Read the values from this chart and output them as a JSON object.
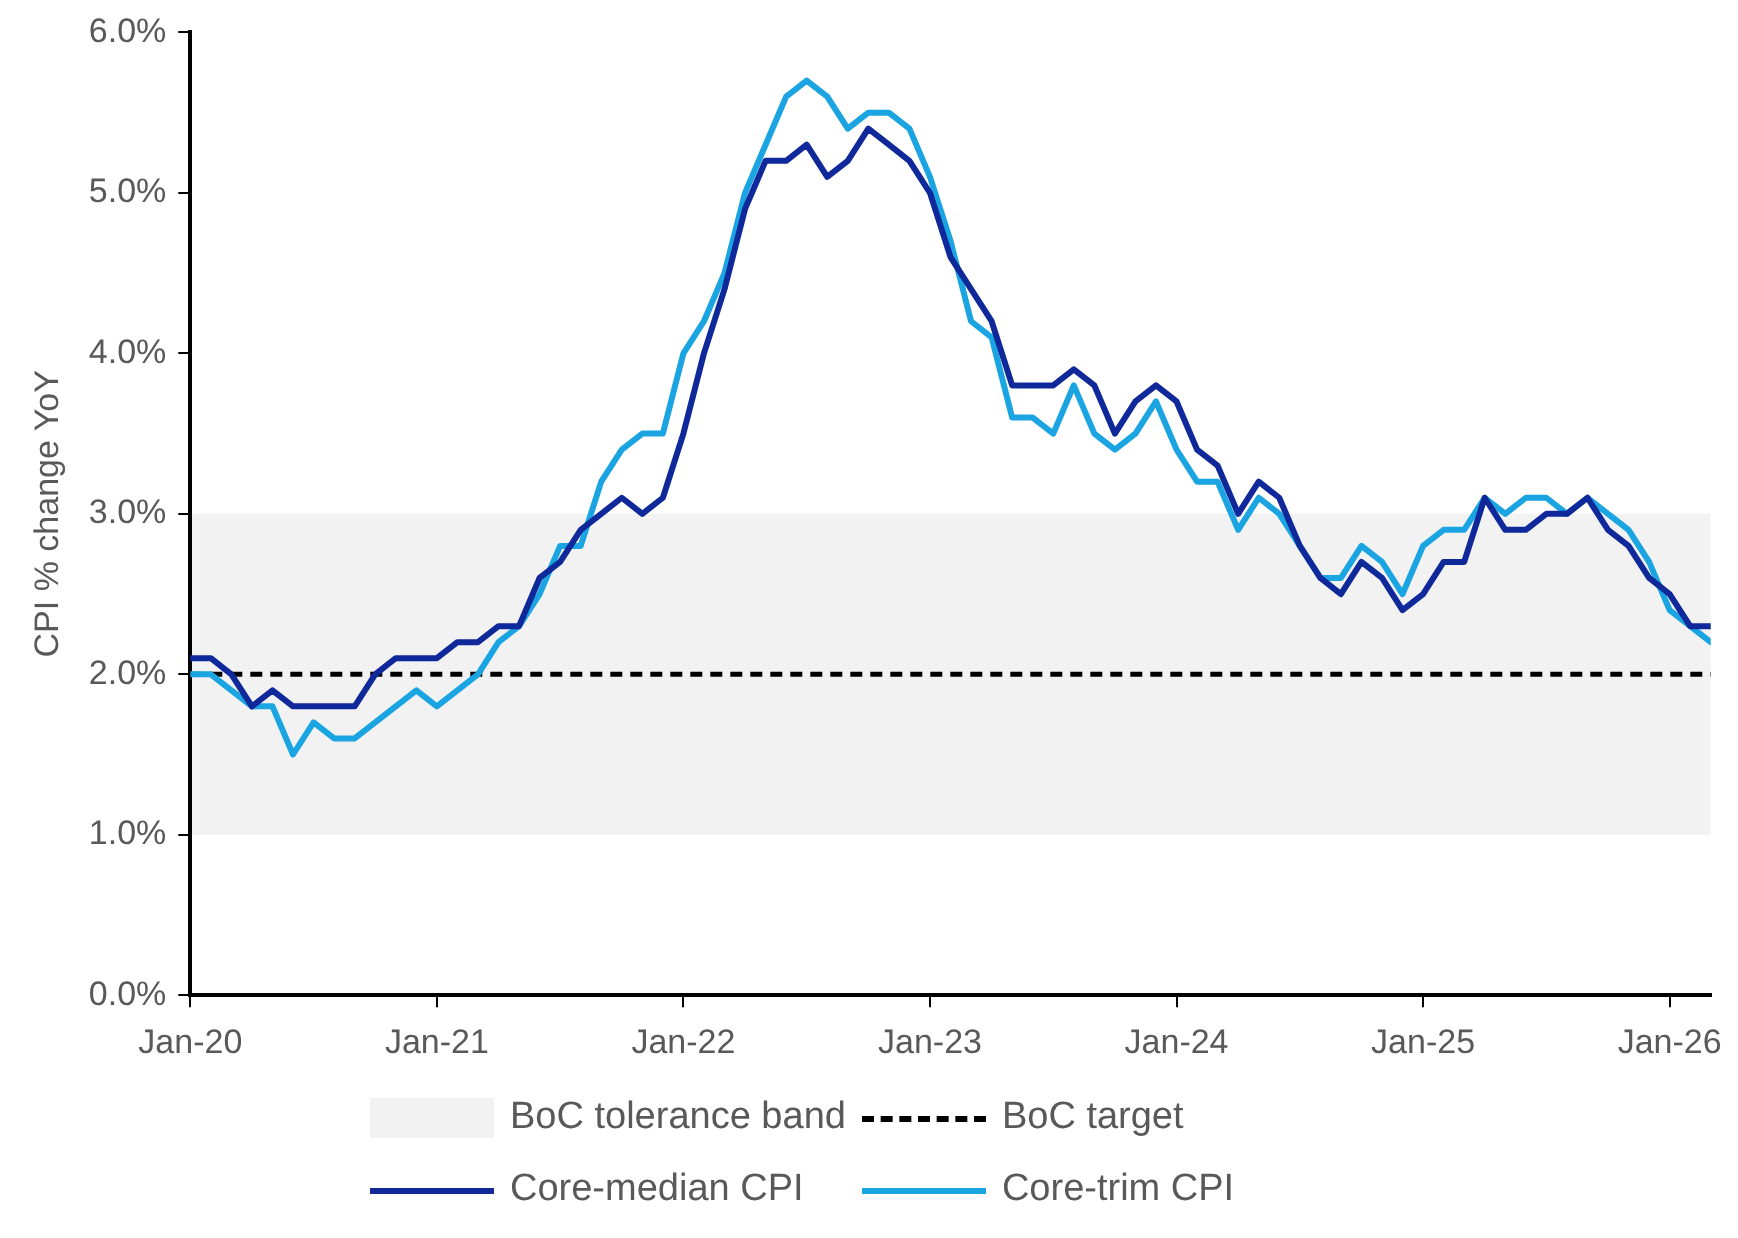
{
  "chart_data": {
    "type": "line",
    "ylabel": "CPI % change YoY",
    "x": [
      "2020-01",
      "2020-02",
      "2020-03",
      "2020-04",
      "2020-05",
      "2020-06",
      "2020-07",
      "2020-08",
      "2020-09",
      "2020-10",
      "2020-11",
      "2020-12",
      "2021-01",
      "2021-02",
      "2021-03",
      "2021-04",
      "2021-05",
      "2021-06",
      "2021-07",
      "2021-08",
      "2021-09",
      "2021-10",
      "2021-11",
      "2021-12",
      "2022-01",
      "2022-02",
      "2022-03",
      "2022-04",
      "2022-05",
      "2022-06",
      "2022-07",
      "2022-08",
      "2022-09",
      "2022-10",
      "2022-11",
      "2022-12",
      "2023-01",
      "2023-02",
      "2023-03",
      "2023-04",
      "2023-05",
      "2023-06",
      "2023-07",
      "2023-08",
      "2023-09",
      "2023-10",
      "2023-11",
      "2023-12",
      "2024-01",
      "2024-02",
      "2024-03",
      "2024-04",
      "2024-05",
      "2024-06",
      "2024-07",
      "2024-08",
      "2024-09",
      "2024-10",
      "2024-11",
      "2024-12",
      "2025-01",
      "2025-02",
      "2025-03",
      "2025-04",
      "2025-05",
      "2025-06",
      "2025-07",
      "2025-08",
      "2025-09",
      "2025-10",
      "2025-11",
      "2025-12",
      "2026-01",
      "2026-02",
      "2026-03"
    ],
    "series": [
      {
        "name": "Core-median CPI",
        "color": "#10299a",
        "values": [
          2.1,
          2.1,
          2.0,
          1.8,
          1.9,
          1.8,
          1.8,
          1.8,
          1.8,
          2.0,
          2.1,
          2.1,
          2.1,
          2.2,
          2.2,
          2.3,
          2.3,
          2.6,
          2.7,
          2.9,
          3.0,
          3.1,
          3.0,
          3.1,
          3.5,
          4.0,
          4.4,
          4.9,
          5.2,
          5.2,
          5.3,
          5.1,
          5.2,
          5.4,
          5.3,
          5.2,
          5.0,
          4.6,
          4.4,
          4.2,
          3.8,
          3.8,
          3.8,
          3.9,
          3.8,
          3.5,
          3.7,
          3.8,
          3.7,
          3.4,
          3.3,
          3.0,
          3.2,
          3.1,
          2.8,
          2.6,
          2.5,
          2.7,
          2.6,
          2.4,
          2.5,
          2.7,
          2.7,
          3.1,
          2.9,
          2.9,
          3.0,
          3.0,
          3.1,
          2.9,
          2.8,
          2.6,
          2.5,
          2.3,
          2.3
        ]
      },
      {
        "name": "Core-trim CPI",
        "color": "#1aa5e2",
        "values": [
          2.0,
          2.0,
          1.9,
          1.8,
          1.8,
          1.5,
          1.7,
          1.6,
          1.6,
          1.7,
          1.8,
          1.9,
          1.8,
          1.9,
          2.0,
          2.2,
          2.3,
          2.5,
          2.8,
          2.8,
          3.2,
          3.4,
          3.5,
          3.5,
          4.0,
          4.2,
          4.5,
          5.0,
          5.3,
          5.6,
          5.7,
          5.6,
          5.4,
          5.5,
          5.5,
          5.4,
          5.1,
          4.7,
          4.2,
          4.1,
          3.6,
          3.6,
          3.5,
          3.8,
          3.5,
          3.4,
          3.5,
          3.7,
          3.4,
          3.2,
          3.2,
          2.9,
          3.1,
          3.0,
          2.8,
          2.6,
          2.6,
          2.8,
          2.7,
          2.5,
          2.8,
          2.9,
          2.9,
          3.1,
          3.0,
          3.1,
          3.1,
          3.0,
          3.1,
          3.0,
          2.9,
          2.7,
          2.4,
          2.3,
          2.2
        ]
      }
    ],
    "xlim": [
      "2020-01",
      "2026-03"
    ],
    "xticks": [
      {
        "value": "2020-01",
        "label": "Jan-20"
      },
      {
        "value": "2021-01",
        "label": "Jan-21"
      },
      {
        "value": "2022-01",
        "label": "Jan-22"
      },
      {
        "value": "2023-01",
        "label": "Jan-23"
      },
      {
        "value": "2024-01",
        "label": "Jan-24"
      },
      {
        "value": "2025-01",
        "label": "Jan-25"
      },
      {
        "value": "2026-01",
        "label": "Jan-26"
      }
    ],
    "ylim": [
      0,
      6
    ],
    "yticks": [
      {
        "value": 0,
        "label": "0.0%"
      },
      {
        "value": 1,
        "label": "1.0%"
      },
      {
        "value": 2,
        "label": "2.0%"
      },
      {
        "value": 3,
        "label": "3.0%"
      },
      {
        "value": 4,
        "label": "4.0%"
      },
      {
        "value": 5,
        "label": "5.0%"
      },
      {
        "value": 6,
        "label": "6.0%"
      }
    ],
    "bands": [
      {
        "axis": "y",
        "from": 1,
        "to": 3,
        "label": "BoC tolerance band",
        "color": "#f2f2f2"
      }
    ],
    "ref_lines": [
      {
        "axis": "y",
        "value": 2,
        "label": "BoC target",
        "color": "#000000",
        "line_style": "dashed"
      }
    ],
    "grid": false,
    "legend": "bottom",
    "marker": "none",
    "line_style": "solid"
  }
}
